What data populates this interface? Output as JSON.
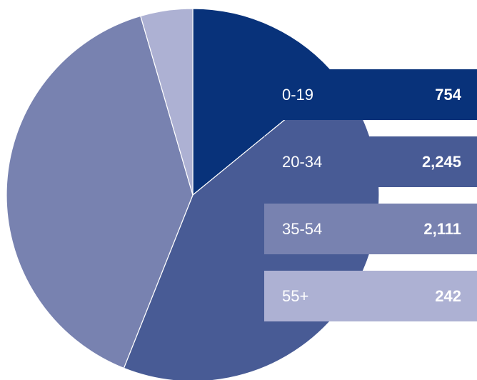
{
  "chart_data": {
    "type": "pie",
    "categories": [
      "0-19",
      "20-34",
      "35-54",
      "55+"
    ],
    "values": [
      754,
      2245,
      2111,
      242
    ],
    "value_labels": [
      "754",
      "2,245",
      "2,111",
      "242"
    ],
    "colors": [
      "#08327a",
      "#485b95",
      "#7882b0",
      "#adb1d3"
    ],
    "start_angle_deg": 0,
    "direction": "clockwise",
    "legend_placement": "right"
  }
}
